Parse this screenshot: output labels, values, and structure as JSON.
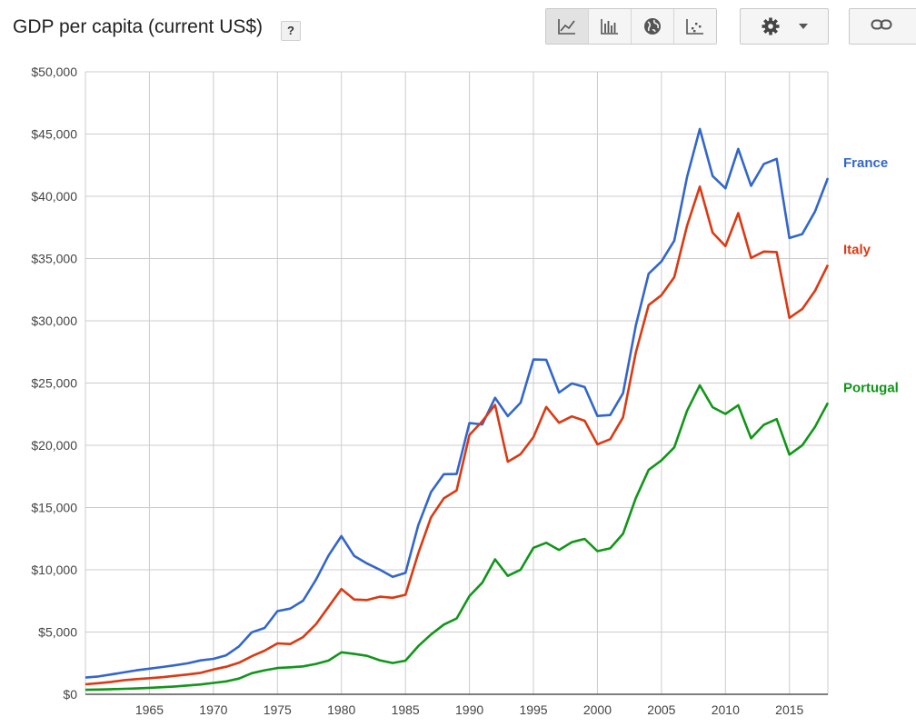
{
  "header": {
    "title": "GDP per capita (current US$)",
    "help_label": "?"
  },
  "toolbar": {
    "tools": [
      {
        "name": "line-chart-icon",
        "active": true
      },
      {
        "name": "bar-chart-icon",
        "active": false
      },
      {
        "name": "map-icon",
        "active": false
      },
      {
        "name": "scatter-chart-icon",
        "active": false
      }
    ],
    "settings_icon": "gear-icon",
    "dropdown_icon": "caret-down-icon",
    "link_icon": "link-icon"
  },
  "colors": {
    "France": "#3366cc",
    "Italy": "#dc3912",
    "Portugal": "#109618",
    "grid": "#cccccc",
    "axis": "#333333"
  },
  "chart_data": {
    "type": "line",
    "title": "GDP per capita (current US$)",
    "xlabel": "",
    "ylabel": "",
    "xlim": [
      1960,
      2018
    ],
    "ylim": [
      0,
      50000
    ],
    "y_ticks": [
      0,
      5000,
      10000,
      15000,
      20000,
      25000,
      30000,
      35000,
      40000,
      45000,
      50000
    ],
    "y_tick_labels": [
      "$0",
      "$5,000",
      "$10,000",
      "$15,000",
      "$20,000",
      "$25,000",
      "$30,000",
      "$35,000",
      "$40,000",
      "$45,000",
      "$50,000"
    ],
    "x_ticks": [
      1965,
      1970,
      1975,
      1980,
      1985,
      1990,
      1995,
      2000,
      2005,
      2010,
      2015
    ],
    "x_tick_labels": [
      "1965",
      "1970",
      "1975",
      "1980",
      "1985",
      "1990",
      "1995",
      "2000",
      "2005",
      "2010",
      "2015"
    ],
    "grid": true,
    "legend": "inline labels at line ends (right)",
    "x": [
      1960,
      1961,
      1962,
      1963,
      1964,
      1965,
      1966,
      1967,
      1968,
      1969,
      1970,
      1971,
      1972,
      1973,
      1974,
      1975,
      1976,
      1977,
      1978,
      1979,
      1980,
      1981,
      1982,
      1983,
      1984,
      1985,
      1986,
      1987,
      1988,
      1989,
      1990,
      1991,
      1992,
      1993,
      1994,
      1995,
      1996,
      1997,
      1998,
      1999,
      2000,
      2001,
      2002,
      2003,
      2004,
      2005,
      2006,
      2007,
      2008,
      2009,
      2010,
      2011,
      2012,
      2013,
      2014,
      2015,
      2016,
      2017,
      2018
    ],
    "series": [
      {
        "name": "France",
        "values": [
          1340,
          1430,
          1590,
          1760,
          1930,
          2060,
          2190,
          2330,
          2490,
          2720,
          2850,
          3130,
          3850,
          4980,
          5330,
          6680,
          6880,
          7520,
          9190,
          11150,
          12710,
          11110,
          10500,
          10010,
          9430,
          9750,
          13560,
          16240,
          17680,
          17690,
          21790,
          21670,
          23820,
          22340,
          23420,
          26890,
          26870,
          24230,
          24970,
          24680,
          22360,
          22430,
          24180,
          29630,
          33780,
          34770,
          36440,
          41560,
          45410,
          41630,
          40640,
          43810,
          40840,
          42600,
          43010,
          36650,
          36960,
          38780,
          41460
        ]
      },
      {
        "name": "Italy",
        "values": [
          800,
          890,
          990,
          1130,
          1220,
          1290,
          1370,
          1480,
          1590,
          1720,
          1990,
          2210,
          2530,
          3060,
          3500,
          4090,
          4040,
          4590,
          5620,
          7030,
          8460,
          7610,
          7570,
          7840,
          7750,
          7990,
          11310,
          14210,
          15740,
          16380,
          20830,
          21930,
          23240,
          18680,
          19290,
          20650,
          23080,
          21810,
          22320,
          21970,
          20080,
          20490,
          22240,
          27450,
          31260,
          32060,
          33500,
          37640,
          40780,
          37080,
          36000,
          38650,
          35050,
          35560,
          35520,
          30230,
          30940,
          32410,
          34480
        ]
      },
      {
        "name": "Portugal",
        "values": [
          360,
          380,
          410,
          440,
          470,
          520,
          570,
          630,
          710,
          790,
          910,
          1040,
          1260,
          1690,
          1930,
          2110,
          2170,
          2240,
          2440,
          2710,
          3370,
          3240,
          3090,
          2730,
          2510,
          2700,
          3860,
          4800,
          5600,
          6090,
          7890,
          8960,
          10840,
          9510,
          10010,
          11770,
          12170,
          11590,
          12220,
          12480,
          11500,
          11720,
          12890,
          15760,
          18020,
          18790,
          19830,
          22780,
          24820,
          23060,
          22520,
          23220,
          20560,
          21650,
          22100,
          19250,
          19990,
          21480,
          23410
        ]
      }
    ]
  }
}
